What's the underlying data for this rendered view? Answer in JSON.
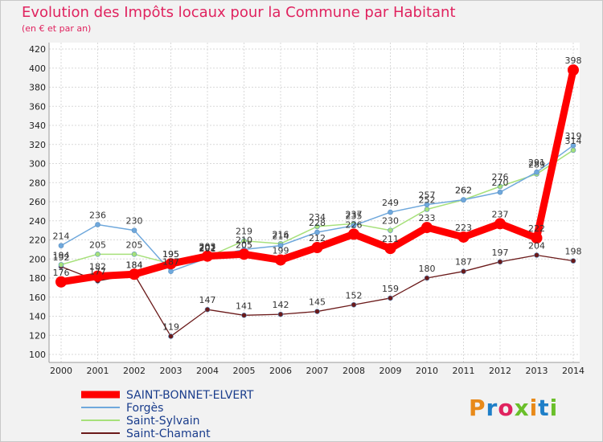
{
  "header": {
    "title": "Evolution des Impôts locaux pour la Commune par Habitant",
    "subtitle": "(en € et par an)"
  },
  "logo": {
    "text": "Proxiti",
    "colors": [
      "#e88a1a",
      "#1f7fc8",
      "#e0235f",
      "#6abf2a",
      "#e88a1a",
      "#1f7fc8",
      "#6abf2a"
    ]
  },
  "chart_data": {
    "type": "line",
    "x": [
      "2000",
      "2001",
      "2002",
      "2003",
      "2004",
      "2005",
      "2006",
      "2007",
      "2008",
      "2009",
      "2010",
      "2011",
      "2012",
      "2013",
      "2014"
    ],
    "yticks": [
      100,
      120,
      140,
      160,
      180,
      200,
      220,
      240,
      260,
      280,
      300,
      320,
      340,
      360,
      380,
      400,
      420
    ],
    "ylim": [
      100,
      420
    ],
    "grid": true,
    "legend_position": "bottom-left",
    "series": [
      {
        "name": "SAINT-BONNET-ELVERT",
        "color": "#ff0000",
        "width": 9,
        "marker": 7,
        "values": [
          176,
          182,
          184,
          195,
          203,
          205,
          199,
          212,
          226,
          211,
          233,
          223,
          237,
          222,
          398
        ],
        "labels": [
          "176",
          "182",
          "184",
          "195",
          "203",
          "205",
          "199",
          "212",
          "226",
          "211",
          "233",
          "223",
          "237",
          "222",
          "398"
        ]
      },
      {
        "name": "Forgès",
        "color": "#6fa8dc",
        "width": 1.5,
        "marker": 3,
        "values": [
          214,
          236,
          230,
          187,
          201,
          210,
          214,
          228,
          235,
          249,
          257,
          262,
          270,
          291,
          319
        ],
        "labels": [
          "214",
          "236",
          "230",
          "187",
          "201",
          "210",
          "214",
          "228",
          "235",
          "249",
          "257",
          "262",
          "270",
          "291",
          "319"
        ]
      },
      {
        "name": "Saint-Sylvain",
        "color": "#a6e07a",
        "width": 1.5,
        "marker": 3,
        "values": [
          194,
          205,
          205,
          195,
          202,
          219,
          216,
          234,
          237,
          230,
          252,
          262,
          276,
          289,
          314
        ],
        "labels": [
          "194",
          "205",
          "205",
          "195",
          "202",
          "219",
          "216",
          "234",
          "237",
          "230",
          "252",
          "262",
          "276",
          "289",
          "314"
        ]
      },
      {
        "name": "Saint-Chamant",
        "color": "#6b1a1a",
        "width": 1.3,
        "marker": 3,
        "values": [
          192,
          177,
          184,
          119,
          147,
          141,
          142,
          145,
          152,
          159,
          180,
          187,
          197,
          204,
          198
        ],
        "labels": [
          "192",
          "177",
          "184",
          "119",
          "147",
          "141",
          "142",
          "145",
          "152",
          "159",
          "180",
          "187",
          "197",
          "204",
          "198"
        ]
      }
    ]
  }
}
